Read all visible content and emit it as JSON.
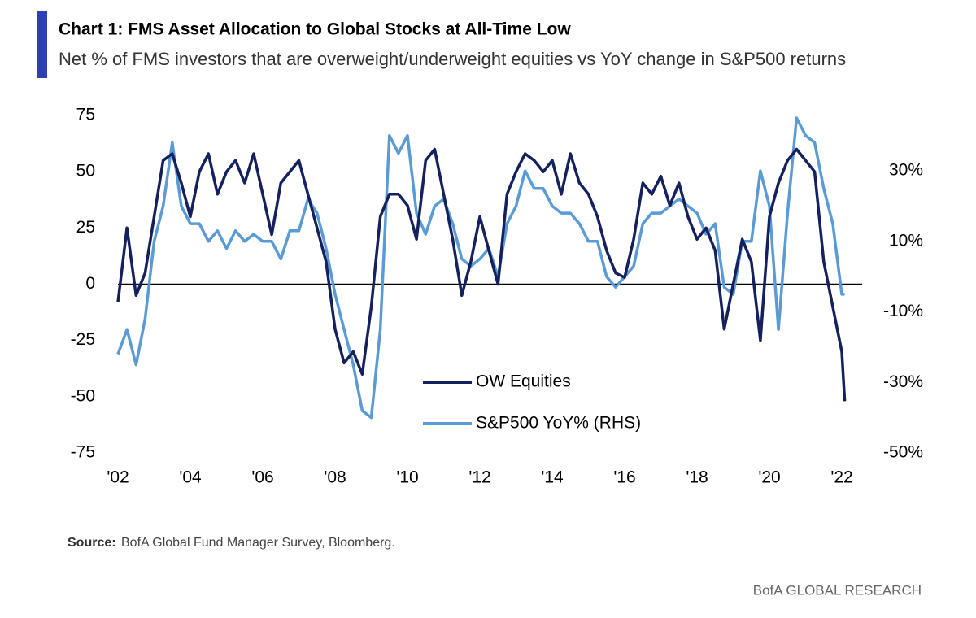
{
  "chart_data": {
    "type": "line",
    "title": "Chart 1: FMS Asset Allocation to Global Stocks at All-Time Low",
    "subtitle": "Net % of FMS investors that are overweight/underweight equities vs YoY change in S&P500 returns",
    "source_label": "Source:",
    "source": "BofA Global Fund Manager Survey, Bloomberg.",
    "branding": "BofA GLOBAL RESEARCH",
    "x": [
      2002,
      2002.25,
      2002.5,
      2002.75,
      2003,
      2003.25,
      2003.5,
      2003.75,
      2004,
      2004.25,
      2004.5,
      2004.75,
      2005,
      2005.25,
      2005.5,
      2005.75,
      2006,
      2006.25,
      2006.5,
      2006.75,
      2007,
      2007.25,
      2007.5,
      2007.75,
      2008,
      2008.25,
      2008.5,
      2008.75,
      2009,
      2009.25,
      2009.5,
      2009.75,
      2010,
      2010.25,
      2010.5,
      2010.75,
      2011,
      2011.25,
      2011.5,
      2011.75,
      2012,
      2012.25,
      2012.5,
      2012.75,
      2013,
      2013.25,
      2013.5,
      2013.75,
      2014,
      2014.25,
      2014.5,
      2014.75,
      2015,
      2015.25,
      2015.5,
      2015.75,
      2016,
      2016.25,
      2016.5,
      2016.75,
      2017,
      2017.25,
      2017.5,
      2017.75,
      2018,
      2018.25,
      2018.5,
      2018.75,
      2019,
      2019.25,
      2019.5,
      2019.75,
      2020,
      2020.25,
      2020.5,
      2020.75,
      2021,
      2021.25,
      2021.5,
      2021.75,
      2022,
      2022.08
    ],
    "series": [
      {
        "name": "OW Equities",
        "color": "#14215e",
        "axis": "y",
        "values": [
          -8,
          25,
          -5,
          5,
          30,
          55,
          58,
          45,
          30,
          50,
          58,
          40,
          50,
          55,
          45,
          58,
          40,
          22,
          45,
          50,
          55,
          40,
          25,
          10,
          -20,
          -35,
          -30,
          -40,
          -10,
          30,
          40,
          40,
          35,
          20,
          55,
          60,
          40,
          20,
          -5,
          10,
          30,
          15,
          0,
          40,
          50,
          58,
          55,
          50,
          55,
          40,
          58,
          45,
          40,
          30,
          15,
          5,
          3,
          20,
          45,
          40,
          48,
          35,
          45,
          30,
          20,
          25,
          15,
          -20,
          0,
          20,
          10,
          -25,
          30,
          45,
          55,
          60,
          55,
          50,
          10,
          -10,
          -30,
          -52
        ]
      },
      {
        "name": "S&P500 YoY% (RHS)",
        "color": "#5b9bd5",
        "axis": "y2",
        "values": [
          -22,
          -15,
          -25,
          -12,
          10,
          20,
          38,
          20,
          15,
          15,
          10,
          13,
          8,
          13,
          10,
          12,
          10,
          10,
          5,
          13,
          13,
          22,
          18,
          8,
          -5,
          -15,
          -25,
          -38,
          -40,
          -15,
          40,
          35,
          40,
          18,
          12,
          20,
          22,
          15,
          5,
          3,
          5,
          8,
          0,
          15,
          20,
          30,
          25,
          25,
          20,
          18,
          18,
          15,
          10,
          10,
          0,
          -3,
          0,
          3,
          15,
          18,
          18,
          20,
          22,
          20,
          18,
          12,
          15,
          -3,
          -5,
          10,
          10,
          30,
          20,
          -15,
          18,
          45,
          40,
          38,
          25,
          15,
          -5,
          -5
        ]
      }
    ],
    "xlim": [
      2002,
      2022
    ],
    "xticks": [
      {
        "value": 2002,
        "label": "'02"
      },
      {
        "value": 2004,
        "label": "'04"
      },
      {
        "value": 2006,
        "label": "'06"
      },
      {
        "value": 2008,
        "label": "'08"
      },
      {
        "value": 2010,
        "label": "'10"
      },
      {
        "value": 2012,
        "label": "'12"
      },
      {
        "value": 2014,
        "label": "'14"
      },
      {
        "value": 2016,
        "label": "'16"
      },
      {
        "value": 2018,
        "label": "'18"
      },
      {
        "value": 2020,
        "label": "'20"
      },
      {
        "value": 2022,
        "label": "'22"
      }
    ],
    "ylim": [
      -75,
      75
    ],
    "yticks": [
      -75,
      -50,
      -25,
      0,
      25,
      50,
      75
    ],
    "y2lim": [
      -50,
      45.7
    ],
    "y2ticks": [
      {
        "value": -50,
        "label": "-50%"
      },
      {
        "value": -30,
        "label": "-30%"
      },
      {
        "value": -10,
        "label": "-10%"
      },
      {
        "value": 10,
        "label": "10%"
      },
      {
        "value": 30,
        "label": "30%"
      }
    ],
    "grid": false
  }
}
